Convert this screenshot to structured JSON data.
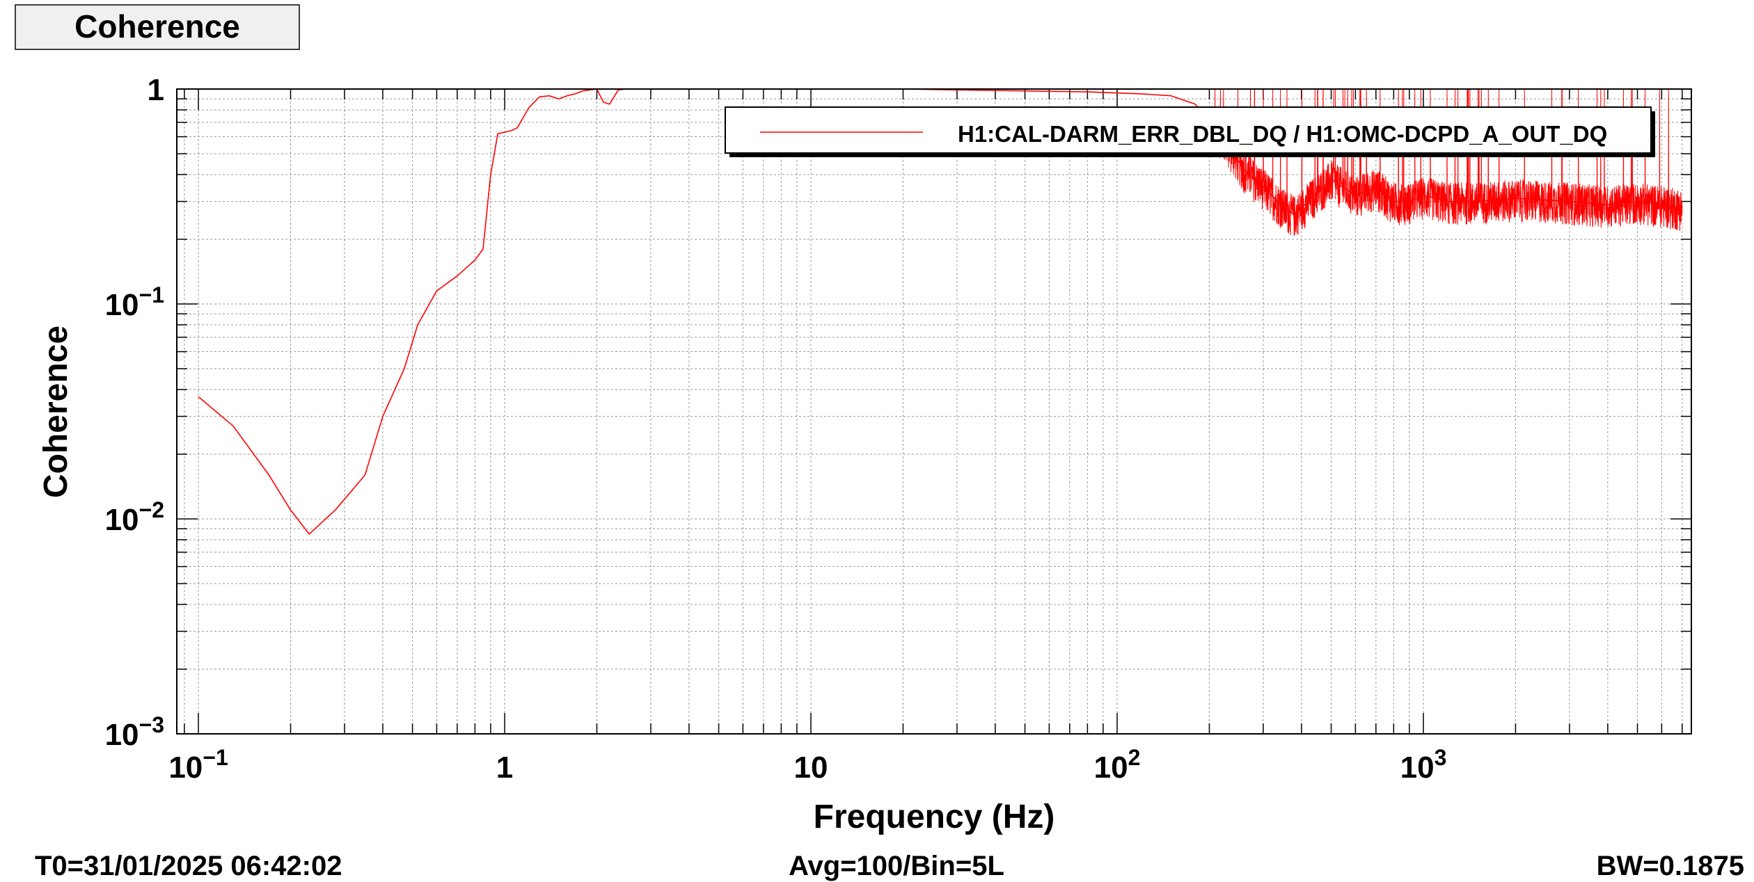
{
  "title_box": {
    "label": "Coherence"
  },
  "footer": {
    "t0": "T0=31/01/2025 06:42:02",
    "avg": "Avg=100/Bin=5L",
    "bw": "BW=0.1875"
  },
  "colors": {
    "trace": "#ff0000",
    "grid": "#9a9a9a",
    "axis": "#000000",
    "title_box_fill": "#f0f0f0"
  },
  "chart_data": {
    "type": "line",
    "title": "Coherence",
    "xlabel": "Frequency (Hz)",
    "ylabel": "Coherence",
    "x_scale": "log",
    "y_scale": "log",
    "xlim": [
      0.085,
      7500
    ],
    "ylim": [
      0.001,
      1
    ],
    "grid": true,
    "legend_position": "top-right",
    "x_ticks": [
      {
        "value": 0.1,
        "base": "10",
        "exp": "−1"
      },
      {
        "value": 1,
        "base": "1",
        "exp": ""
      },
      {
        "value": 10,
        "base": "10",
        "exp": ""
      },
      {
        "value": 100,
        "base": "10",
        "exp": "2"
      },
      {
        "value": 1000,
        "base": "10",
        "exp": "3"
      }
    ],
    "y_ticks": [
      {
        "value": 1,
        "base": "1",
        "exp": ""
      },
      {
        "value": 0.1,
        "base": "10",
        "exp": "−1"
      },
      {
        "value": 0.01,
        "base": "10",
        "exp": "−2"
      },
      {
        "value": 0.001,
        "base": "10",
        "exp": "−3"
      }
    ],
    "series": [
      {
        "name": "H1:CAL-DARM_ERR_DBL_DQ / H1:OMC-DCPD_A_OUT_DQ",
        "color": "#ff0000",
        "x": [
          0.1,
          0.13,
          0.17,
          0.2,
          0.23,
          0.28,
          0.35,
          0.4,
          0.47,
          0.52,
          0.6,
          0.7,
          0.8,
          0.85,
          0.9,
          0.95,
          1.05,
          1.1,
          1.2,
          1.3,
          1.4,
          1.5,
          1.6,
          1.7,
          1.8,
          2.0,
          2.1,
          2.2,
          2.35,
          2.5,
          3,
          4,
          6,
          10,
          15,
          20,
          30,
          50,
          80,
          120,
          150,
          180,
          200,
          230,
          260,
          300,
          350,
          380,
          420,
          500,
          600,
          700,
          800,
          900,
          1000,
          1200,
          1500,
          2000,
          3000,
          4000,
          5000,
          6000,
          7000
        ],
        "y": [
          0.037,
          0.027,
          0.016,
          0.011,
          0.0085,
          0.011,
          0.016,
          0.03,
          0.05,
          0.08,
          0.115,
          0.135,
          0.16,
          0.18,
          0.4,
          0.62,
          0.64,
          0.66,
          0.82,
          0.92,
          0.93,
          0.9,
          0.93,
          0.95,
          0.98,
          1.0,
          0.87,
          0.85,
          0.99,
          1.0,
          1.0,
          1.0,
          1.0,
          1.0,
          1.0,
          1.0,
          0.99,
          0.98,
          0.97,
          0.95,
          0.93,
          0.85,
          0.7,
          0.55,
          0.42,
          0.35,
          0.28,
          0.26,
          0.3,
          0.38,
          0.32,
          0.35,
          0.3,
          0.3,
          0.32,
          0.3,
          0.3,
          0.31,
          0.3,
          0.29,
          0.3,
          0.29,
          0.28
        ]
      }
    ]
  }
}
